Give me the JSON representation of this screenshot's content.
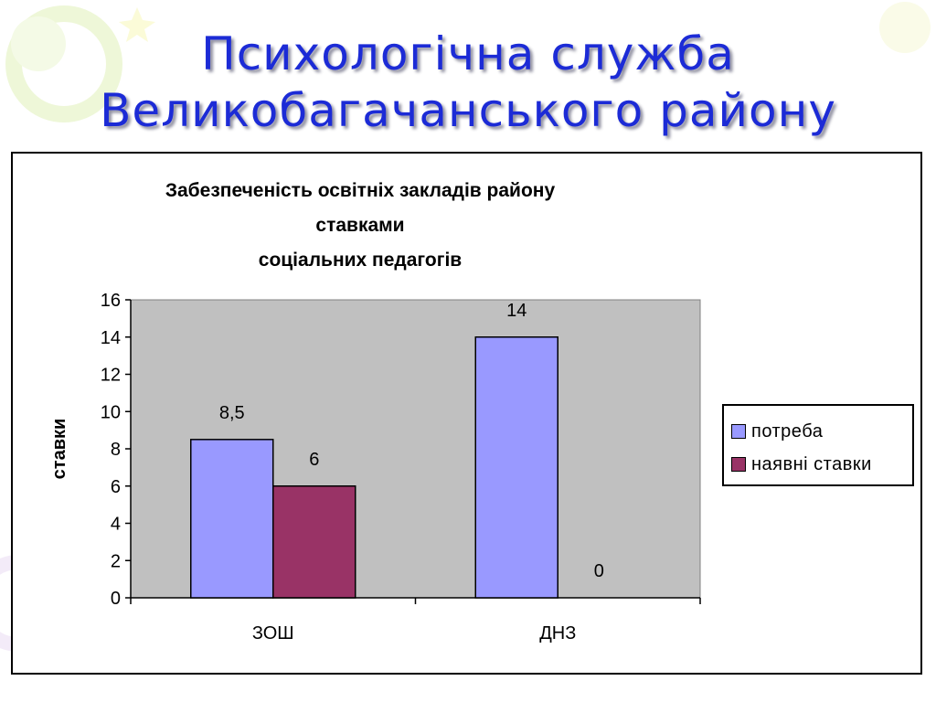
{
  "slide": {
    "title_line1": "Психологічна служба",
    "title_line2": "Великобагачанського району"
  },
  "colors": {
    "title": "#1c2bd6",
    "plot_background": "#c0c0c0",
    "series_need": "#9999ff",
    "series_available": "#993366"
  },
  "chart_data": {
    "type": "bar",
    "title_line1": "Забезпеченість освітніх закладів району ставками",
    "title_line2": "соціальних педагогів",
    "ylabel": "ставки",
    "xlabel": "",
    "categories": [
      "ЗОШ",
      "ДНЗ"
    ],
    "ylim": [
      0,
      16
    ],
    "yticks": [
      0,
      2,
      4,
      6,
      8,
      10,
      12,
      14,
      16
    ],
    "grid": false,
    "legend_position": "right",
    "series": [
      {
        "name": "потреба",
        "values": [
          8.5,
          14
        ],
        "labels": [
          "8,5",
          "14"
        ],
        "color": "#9999ff"
      },
      {
        "name": "наявні ставки",
        "values": [
          6,
          0
        ],
        "labels": [
          "6",
          "0"
        ],
        "color": "#993366"
      }
    ]
  }
}
